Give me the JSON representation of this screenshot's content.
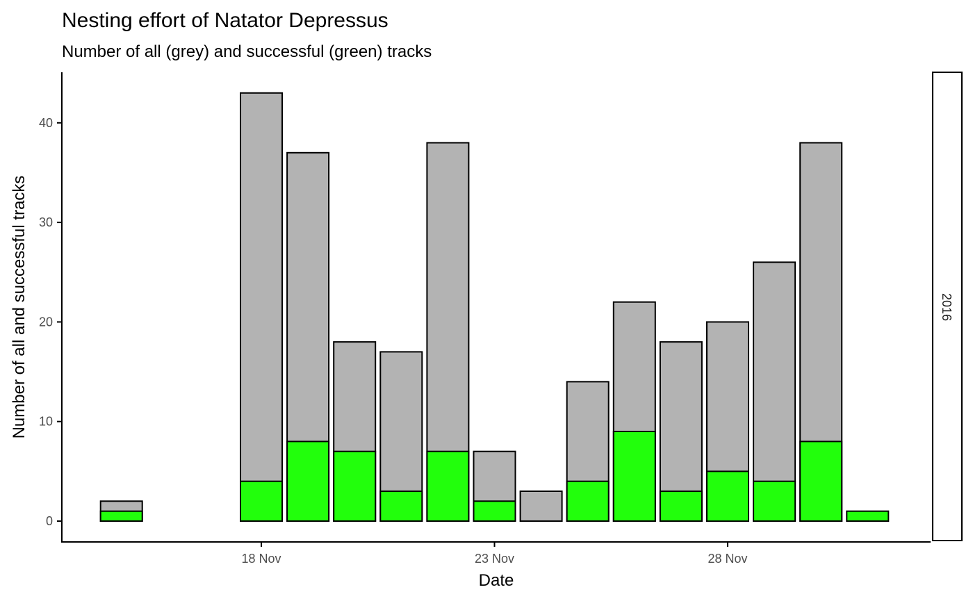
{
  "chart_data": {
    "type": "bar",
    "title": "Nesting effort of Natator Depressus",
    "subtitle": "Number of all (grey) and successful (green) tracks",
    "xlabel": "Date",
    "ylabel": "Number of all and successful tracks",
    "facet_label": "2016",
    "x_ticks": [
      {
        "date": "2016-11-18",
        "label": "18 Nov"
      },
      {
        "date": "2016-11-23",
        "label": "23 Nov"
      },
      {
        "date": "2016-11-28",
        "label": "28 Nov"
      }
    ],
    "y_ticks": [
      0,
      10,
      20,
      30,
      40
    ],
    "ylim": [
      0,
      45
    ],
    "xlim": [
      "2016-11-14",
      "2016-12-02"
    ],
    "colors": {
      "all": "#b3b3b3",
      "successful": "#22ff0c",
      "outline": "#000000"
    },
    "series": [
      {
        "name": "all",
        "x": [
          "2016-11-15",
          "2016-11-18",
          "2016-11-19",
          "2016-11-20",
          "2016-11-21",
          "2016-11-22",
          "2016-11-23",
          "2016-11-24",
          "2016-11-25",
          "2016-11-26",
          "2016-11-27",
          "2016-11-28",
          "2016-11-29",
          "2016-11-30"
        ],
        "values": [
          2,
          43,
          37,
          18,
          17,
          38,
          7,
          3,
          14,
          22,
          18,
          20,
          26,
          38
        ]
      },
      {
        "name": "successful",
        "x": [
          "2016-11-15",
          "2016-11-18",
          "2016-11-19",
          "2016-11-20",
          "2016-11-21",
          "2016-11-22",
          "2016-11-23",
          "2016-11-24",
          "2016-11-25",
          "2016-11-26",
          "2016-11-27",
          "2016-11-28",
          "2016-11-29",
          "2016-11-30",
          "2016-12-01"
        ],
        "values": [
          1,
          4,
          8,
          7,
          3,
          7,
          2,
          0,
          4,
          9,
          3,
          5,
          4,
          8,
          1
        ]
      }
    ]
  }
}
